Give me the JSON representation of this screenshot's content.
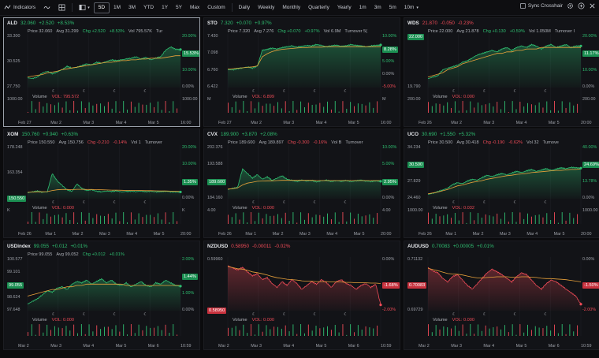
{
  "toolbar": {
    "indicators_label": "Indicators",
    "ranges": [
      "5D",
      "1M",
      "3M",
      "YTD",
      "1Y",
      "5Y",
      "Max",
      "Custom"
    ],
    "active_range": "5D",
    "intervals": [
      "Daily",
      "Weekly",
      "Monthly",
      "Quarterly",
      "Yearly",
      "1m",
      "3m",
      "5m",
      "10m"
    ],
    "sync_label": "Sync Crosshair",
    "colors": {
      "up": "#2fbf71",
      "down": "#ef4b57",
      "avg": "#e8a13a"
    }
  },
  "panels": [
    {
      "symbol": "ALD",
      "price": "32.060",
      "change": "+2.520",
      "pct": "+8.53%",
      "dir": "up",
      "selected": true,
      "info": {
        "price": "Price 32.060",
        "avg": "Avg 31.299",
        "chg": "Chg +2.520",
        "pct": "+8.53%",
        "vol": "Vol 795.57K",
        "turn": "Tur"
      },
      "left_axis": [
        "33.300",
        "30.525",
        "27.750"
      ],
      "price_tag": "32.060",
      "price_tag_color": "g",
      "right_pct": [
        "20.00%",
        "15.53%",
        "10.00%",
        "0.00%"
      ],
      "right_tag": "15.53%",
      "right_tag_color": "g",
      "vol_label": "Volume",
      "vol_value": "VOL: 795.572",
      "vol_axis": [
        "1000.00",
        "1000.00"
      ],
      "xaxis": [
        "Feb 27",
        "Mar 2",
        "Mar 3",
        "Mar 4",
        "Mar 5",
        "16:00"
      ],
      "series": [
        28.6,
        28.5,
        28.7,
        29.2,
        29.4,
        29.1,
        29.3,
        29.6,
        30.0,
        29.8,
        29.9,
        30.1,
        30.3,
        30.2,
        30.5,
        30.4,
        30.6,
        30.8,
        30.7,
        30.8,
        30.9,
        31.0,
        31.2,
        30.9,
        31.1,
        30.8,
        31.0,
        31.2,
        32.0,
        32.4,
        32.1,
        32.06
      ],
      "avg": [
        28.7,
        28.8,
        28.9,
        29.0,
        29.2,
        29.3,
        29.4,
        29.6,
        29.7,
        29.8,
        29.9,
        30.0,
        30.1,
        30.2,
        30.3,
        30.4,
        30.5,
        30.5,
        30.6,
        30.7,
        30.7,
        30.8,
        30.8,
        30.9,
        30.9,
        31.0,
        31.0,
        31.0,
        31.1,
        31.2,
        31.3,
        31.3
      ],
      "ylim": [
        27.4,
        33.6
      ]
    },
    {
      "symbol": "STO",
      "price": "7.320",
      "change": "+0.070",
      "pct": "+0.97%",
      "dir": "up",
      "selected": false,
      "info": {
        "price": "Price 7.320",
        "avg": "Avg 7.276",
        "chg": "Chg +0.070",
        "pct": "+0.97%",
        "vol": "Vol 6.9M",
        "turn": "Turnover 5("
      },
      "left_axis": [
        "7.430",
        "7.098",
        "6.760",
        "6.422"
      ],
      "price_tag": "7.320",
      "price_tag_color": "g",
      "right_pct": [
        "10.00%",
        "8.28%",
        "5.00%",
        "0.00%",
        "-5.00%"
      ],
      "right_tag": "8.28%",
      "right_tag_color": "g",
      "vol_label": "Volume",
      "vol_value": "VOL: 6.899",
      "vol_axis": [
        "M",
        "M"
      ],
      "xaxis": [
        "Feb 27",
        "Mar 2",
        "Mar 3",
        "Mar 4",
        "Mar 5",
        "16:00"
      ],
      "series": [
        6.76,
        6.75,
        6.78,
        6.8,
        6.82,
        6.79,
        6.84,
        7.2,
        7.22,
        7.25,
        7.23,
        7.26,
        7.28,
        7.3,
        7.27,
        7.29,
        7.31,
        7.3,
        7.33,
        7.31,
        7.28,
        7.3,
        7.32,
        7.29,
        7.3,
        7.33,
        7.31,
        7.3,
        7.28,
        7.3,
        7.31,
        7.32
      ],
      "avg": [
        6.77,
        6.78,
        6.79,
        6.8,
        6.81,
        6.82,
        6.84,
        7.05,
        7.12,
        7.17,
        7.2,
        7.22,
        7.23,
        7.24,
        7.25,
        7.26,
        7.26,
        7.27,
        7.27,
        7.27,
        7.28,
        7.28,
        7.28,
        7.28,
        7.28,
        7.28,
        7.28,
        7.28,
        7.28,
        7.28,
        7.28,
        7.28
      ],
      "ylim": [
        6.35,
        7.5
      ]
    },
    {
      "symbol": "WDS",
      "price": "21.870",
      "change": "-0.050",
      "pct": "-0.23%",
      "dir": "dn",
      "selected": false,
      "info": {
        "price": "Price 22.000",
        "avg": "Avg 21.878",
        "chg": "Chg +0.130",
        "pct": "+0.59%",
        "vol": "Vol 1.050M",
        "turn": "Turnover I"
      },
      "left_axis": [
        "22.000",
        "19.790"
      ],
      "price_tag": "22.000",
      "price_tag_color": "g",
      "right_pct": [
        "20.00%",
        "11.17%",
        "10.00%",
        "0.00%"
      ],
      "right_tag": "11.17%",
      "right_tag_color": "g",
      "vol_label": "Volume",
      "vol_value": "VOL: 0.000",
      "vol_axis": [
        "200.00",
        "200.00"
      ],
      "xaxis": [
        "Feb 26",
        "Mar 2",
        "Mar 3",
        "Mar 4",
        "Mar 5",
        "20:00"
      ],
      "series": [
        19.8,
        19.9,
        20.0,
        20.4,
        20.5,
        20.6,
        20.7,
        20.9,
        21.0,
        21.2,
        21.4,
        21.5,
        21.6,
        21.7,
        21.6,
        21.8,
        21.9,
        21.7,
        21.9,
        22.0,
        21.9,
        22.1,
        22.0,
        21.8,
        22.0,
        22.1,
        21.9,
        22.0,
        22.1,
        21.9,
        22.0,
        22.0
      ],
      "avg": [
        19.9,
        20.0,
        20.1,
        20.2,
        20.4,
        20.5,
        20.6,
        20.8,
        20.9,
        21.0,
        21.1,
        21.2,
        21.3,
        21.4,
        21.5,
        21.5,
        21.6,
        21.6,
        21.7,
        21.7,
        21.8,
        21.8,
        21.8,
        21.9,
        21.9,
        21.9,
        21.9,
        21.9,
        21.9,
        21.9,
        21.9,
        21.9
      ],
      "ylim": [
        19.2,
        22.6
      ]
    },
    {
      "symbol": "XOM",
      "price": "150.760",
      "change": "+0.940",
      "pct": "+0.63%",
      "dir": "up",
      "selected": false,
      "info": {
        "price": "Price 150.550",
        "avg": "Avg 150.756",
        "chg": "Chg -0.210",
        "pct": "-0.14%",
        "vol": "Vol 1",
        "turn": "Turnover"
      },
      "left_axis": [
        "178.248",
        "163.354",
        "150.550"
      ],
      "price_tag": "150.550",
      "price_tag_color": "g",
      "right_pct": [
        "20.00%",
        "10.00%",
        "1.35%",
        "0.00%"
      ],
      "right_tag": "1.35%",
      "right_tag_color": "g",
      "vol_label": "Volume",
      "vol_value": "VOL: 0.000",
      "vol_axis": [
        "K",
        "K"
      ],
      "xaxis": [
        "Feb 26",
        "Mar 1",
        "Mar 2",
        "Mar 3",
        "Mar 4",
        "Mar 5",
        "20:00"
      ],
      "series": [
        150.0,
        150.6,
        151.2,
        150.4,
        150.8,
        163.0,
        158.0,
        155.0,
        152.0,
        151.0,
        156.0,
        153.0,
        151.5,
        152.0,
        151.0,
        150.7,
        151.2,
        150.9,
        151.3,
        150.6,
        150.9,
        151.1,
        150.8,
        151.2,
        150.7,
        151.0,
        150.6,
        150.8,
        151.0,
        150.7,
        150.6,
        150.55
      ],
      "avg": [
        150.3,
        150.5,
        150.7,
        150.7,
        150.8,
        151.5,
        152.0,
        152.2,
        152.2,
        152.1,
        152.3,
        152.3,
        152.2,
        152.2,
        152.1,
        152.0,
        151.9,
        151.8,
        151.8,
        151.7,
        151.6,
        151.6,
        151.5,
        151.5,
        151.4,
        151.4,
        151.3,
        151.2,
        151.2,
        151.1,
        151.0,
        150.9
      ],
      "ylim": [
        146.0,
        180.0
      ]
    },
    {
      "symbol": "CVX",
      "price": "189.900",
      "change": "+3.870",
      "pct": "+2.08%",
      "dir": "up",
      "selected": false,
      "info": {
        "price": "Price 189.600",
        "avg": "Avg 189.897",
        "chg": "Chg -0.300",
        "pct": "-0.16%",
        "vol": "Vol B",
        "turn": "Turnover"
      },
      "left_axis": [
        "202.376",
        "193.588",
        "189.600",
        "184.160"
      ],
      "price_tag": "189.600",
      "price_tag_color": "g",
      "right_pct": [
        "10.00%",
        "5.00%",
        "2.95%",
        "0.00%"
      ],
      "right_tag": "2.95%",
      "right_tag_color": "g",
      "vol_label": "Volume",
      "vol_value": "VOL: 0.000",
      "vol_axis": [
        "4.00",
        "4.00"
      ],
      "xaxis": [
        "Feb 26",
        "Mar 1",
        "Mar 2",
        "Mar 3",
        "Mar 4",
        "Mar 5",
        "20:00"
      ],
      "series": [
        186.0,
        186.5,
        187.0,
        195.0,
        193.0,
        191.0,
        192.5,
        190.5,
        191.5,
        190.0,
        191.0,
        192.0,
        190.5,
        190.0,
        189.5,
        190.2,
        189.7,
        190.0,
        189.3,
        189.8,
        190.1,
        189.5,
        189.9,
        189.6,
        190.0,
        189.4,
        189.8,
        190.1,
        189.7,
        189.5,
        189.8,
        189.6
      ],
      "avg": [
        186.2,
        186.4,
        186.7,
        188.0,
        188.8,
        189.2,
        189.6,
        189.7,
        189.8,
        189.8,
        189.9,
        190.0,
        190.0,
        190.0,
        190.0,
        190.0,
        190.0,
        190.0,
        189.9,
        189.9,
        189.9,
        189.9,
        189.9,
        189.9,
        189.9,
        189.9,
        189.9,
        189.9,
        189.9,
        189.9,
        189.9,
        189.9
      ],
      "ylim": [
        182.0,
        204.0
      ]
    },
    {
      "symbol": "UCO",
      "price": "30.690",
      "change": "+1.550",
      "pct": "+5.32%",
      "dir": "up",
      "selected": false,
      "info": {
        "price": "Price 30.500",
        "avg": "Avg 30.418",
        "chg": "Chg -0.190",
        "pct": "-0.62%",
        "vol": "Vol 32",
        "turn": "Turnove"
      },
      "left_axis": [
        "34.234",
        "30.500",
        "27.829",
        "24.460"
      ],
      "price_tag": "30.500",
      "price_tag_color": "g",
      "right_pct": [
        "40.00%",
        "24.69%",
        "13.78%",
        "0.00%"
      ],
      "right_tag": "24.69%",
      "right_tag_color": "g",
      "vol_label": "Volume",
      "vol_value": "VOL: 0.032",
      "vol_axis": [
        "1000.00",
        "1000.00"
      ],
      "xaxis": [
        "Feb 26",
        "Mar 1",
        "Mar 2",
        "Mar 3",
        "Mar 4",
        "Mar 5",
        "20:00"
      ],
      "series": [
        24.6,
        24.8,
        25.2,
        25.6,
        26.0,
        26.8,
        27.2,
        27.0,
        27.6,
        28.0,
        27.8,
        28.4,
        28.9,
        28.6,
        29.0,
        29.3,
        29.0,
        29.4,
        29.8,
        29.5,
        29.9,
        30.2,
        29.8,
        30.1,
        30.4,
        30.0,
        30.3,
        30.6,
        30.4,
        30.7,
        30.6,
        30.5
      ],
      "avg": [
        24.7,
        24.9,
        25.1,
        25.4,
        25.7,
        26.1,
        26.5,
        26.7,
        27.0,
        27.3,
        27.5,
        27.7,
        28.0,
        28.2,
        28.4,
        28.6,
        28.8,
        28.9,
        29.1,
        29.2,
        29.3,
        29.5,
        29.6,
        29.7,
        29.8,
        29.9,
        30.0,
        30.0,
        30.1,
        30.2,
        30.2,
        30.3
      ],
      "ylim": [
        23.6,
        35.0
      ]
    },
    {
      "symbol": "USDindex",
      "price": "99.055",
      "change": "+0.012",
      "pct": "+0.01%",
      "dir": "up",
      "selected": false,
      "info": {
        "price": "Price 99.055",
        "avg": "Avg 99.052",
        "chg": "Chg +0.012",
        "pct": "+0.01%",
        "vol": "",
        "turn": ""
      },
      "left_axis": [
        "100.577",
        "99.101",
        "99.055",
        "98.624",
        "97.648"
      ],
      "price_tag": "99.055",
      "price_tag_color": "g",
      "right_pct": [
        "2.00%",
        "1.44%",
        "1.00%",
        "0.00%"
      ],
      "right_tag": "1.44%",
      "right_tag_color": "g",
      "vol_label": "Volume",
      "vol_value": "VOL: 0.000",
      "vol_axis": [
        "",
        ""
      ],
      "xaxis": [
        "Mar 2",
        "Mar 3",
        "Mar 4",
        "Mar 5",
        "Mar 6",
        "10:59"
      ],
      "series": [
        97.7,
        97.9,
        98.1,
        98.4,
        98.7,
        98.6,
        98.9,
        99.0,
        98.8,
        99.2,
        99.4,
        99.3,
        99.5,
        99.2,
        99.4,
        99.6,
        99.3,
        99.5,
        99.2,
        99.1,
        99.3,
        99.0,
        99.2,
        99.4,
        99.1,
        99.0,
        99.3,
        99.2,
        99.5,
        99.3,
        99.1,
        99.05
      ],
      "avg": [
        98.3,
        98.4,
        98.5,
        98.6,
        98.7,
        98.8,
        98.8,
        98.9,
        99.0,
        99.0,
        99.1,
        99.1,
        99.2,
        99.2,
        99.2,
        99.2,
        99.2,
        99.2,
        99.2,
        99.2,
        99.1,
        99.1,
        99.1,
        99.1,
        99.1,
        99.1,
        99.1,
        99.1,
        99.1,
        99.1,
        99.1,
        99.1
      ],
      "ylim": [
        97.2,
        101.0
      ]
    },
    {
      "symbol": "NZDUSD",
      "price": "0.58950",
      "change": "-0.00011",
      "pct": "-0.02%",
      "dir": "dn",
      "selected": false,
      "info": {
        "price": "",
        "avg": "",
        "chg": "",
        "pct": "",
        "vol": "",
        "turn": ""
      },
      "left_axis": [
        "0.59960",
        "0.58950"
      ],
      "price_tag": "0.58950",
      "price_tag_color": "r",
      "right_pct": [
        "0.00%",
        "-1.68%",
        "-2.00%"
      ],
      "right_tag": "-1.68%",
      "right_tag_color": "r",
      "vol_label": "Volume",
      "vol_value": "VOL: 0.000",
      "vol_axis": [
        "",
        ""
      ],
      "xaxis": [
        "Mar 2",
        "Mar 3",
        "Mar 4",
        "Mar 5",
        "Mar 6",
        "10:59"
      ],
      "series": [
        0.5996,
        0.599,
        0.5985,
        0.5992,
        0.598,
        0.597,
        0.5975,
        0.596,
        0.5965,
        0.595,
        0.594,
        0.5955,
        0.5945,
        0.596,
        0.595,
        0.5935,
        0.5945,
        0.5955,
        0.5948,
        0.596,
        0.5952,
        0.594,
        0.5955,
        0.596,
        0.595,
        0.5945,
        0.5935,
        0.5945,
        0.595,
        0.594,
        0.5948,
        0.5895
      ],
      "avg": [
        0.5994,
        0.5991,
        0.5988,
        0.5987,
        0.5984,
        0.598,
        0.5978,
        0.5975,
        0.5972,
        0.5968,
        0.5965,
        0.5963,
        0.5961,
        0.596,
        0.5959,
        0.5957,
        0.5956,
        0.5956,
        0.5955,
        0.5955,
        0.5955,
        0.5954,
        0.5954,
        0.5954,
        0.5953,
        0.5953,
        0.5952,
        0.5952,
        0.5952,
        0.5951,
        0.5951,
        0.595
      ],
      "ylim": [
        0.588,
        0.601
      ]
    },
    {
      "symbol": "AUDUSD",
      "price": "0.70083",
      "change": "+0.00005",
      "pct": "+0.01%",
      "dir": "up",
      "selected": false,
      "info": {
        "price": "",
        "avg": "",
        "chg": "",
        "pct": "",
        "vol": "",
        "turn": ""
      },
      "left_axis": [
        "0.71132",
        "0.70083",
        "0.69729"
      ],
      "price_tag": "0.70083",
      "price_tag_color": "r",
      "right_pct": [
        "0.00%",
        "-1.50%",
        "-2.00%"
      ],
      "right_tag": "-1.50%",
      "right_tag_color": "r",
      "vol_label": "Volume",
      "vol_value": "VOL: 0.000",
      "vol_axis": [
        "",
        ""
      ],
      "xaxis": [
        "Mar 2",
        "Mar 3",
        "Mar 4",
        "Mar 5",
        "Mar 6",
        "10:59"
      ],
      "series": [
        0.711,
        0.71,
        0.7095,
        0.708,
        0.707,
        0.7085,
        0.709,
        0.7075,
        0.706,
        0.705,
        0.7065,
        0.708,
        0.7095,
        0.7105,
        0.7098,
        0.709,
        0.708,
        0.707,
        0.7085,
        0.7095,
        0.709,
        0.7075,
        0.706,
        0.705,
        0.7065,
        0.7075,
        0.707,
        0.706,
        0.705,
        0.704,
        0.703,
        0.7008
      ],
      "avg": [
        0.7108,
        0.7104,
        0.7101,
        0.7097,
        0.7093,
        0.7092,
        0.7091,
        0.7089,
        0.7086,
        0.7083,
        0.7081,
        0.7081,
        0.7082,
        0.7083,
        0.7084,
        0.7084,
        0.7084,
        0.7083,
        0.7083,
        0.7084,
        0.7084,
        0.7083,
        0.7082,
        0.708,
        0.7079,
        0.7079,
        0.7078,
        0.7077,
        0.7076,
        0.7074,
        0.7072,
        0.707
      ],
      "ylim": [
        0.699,
        0.713
      ]
    }
  ]
}
